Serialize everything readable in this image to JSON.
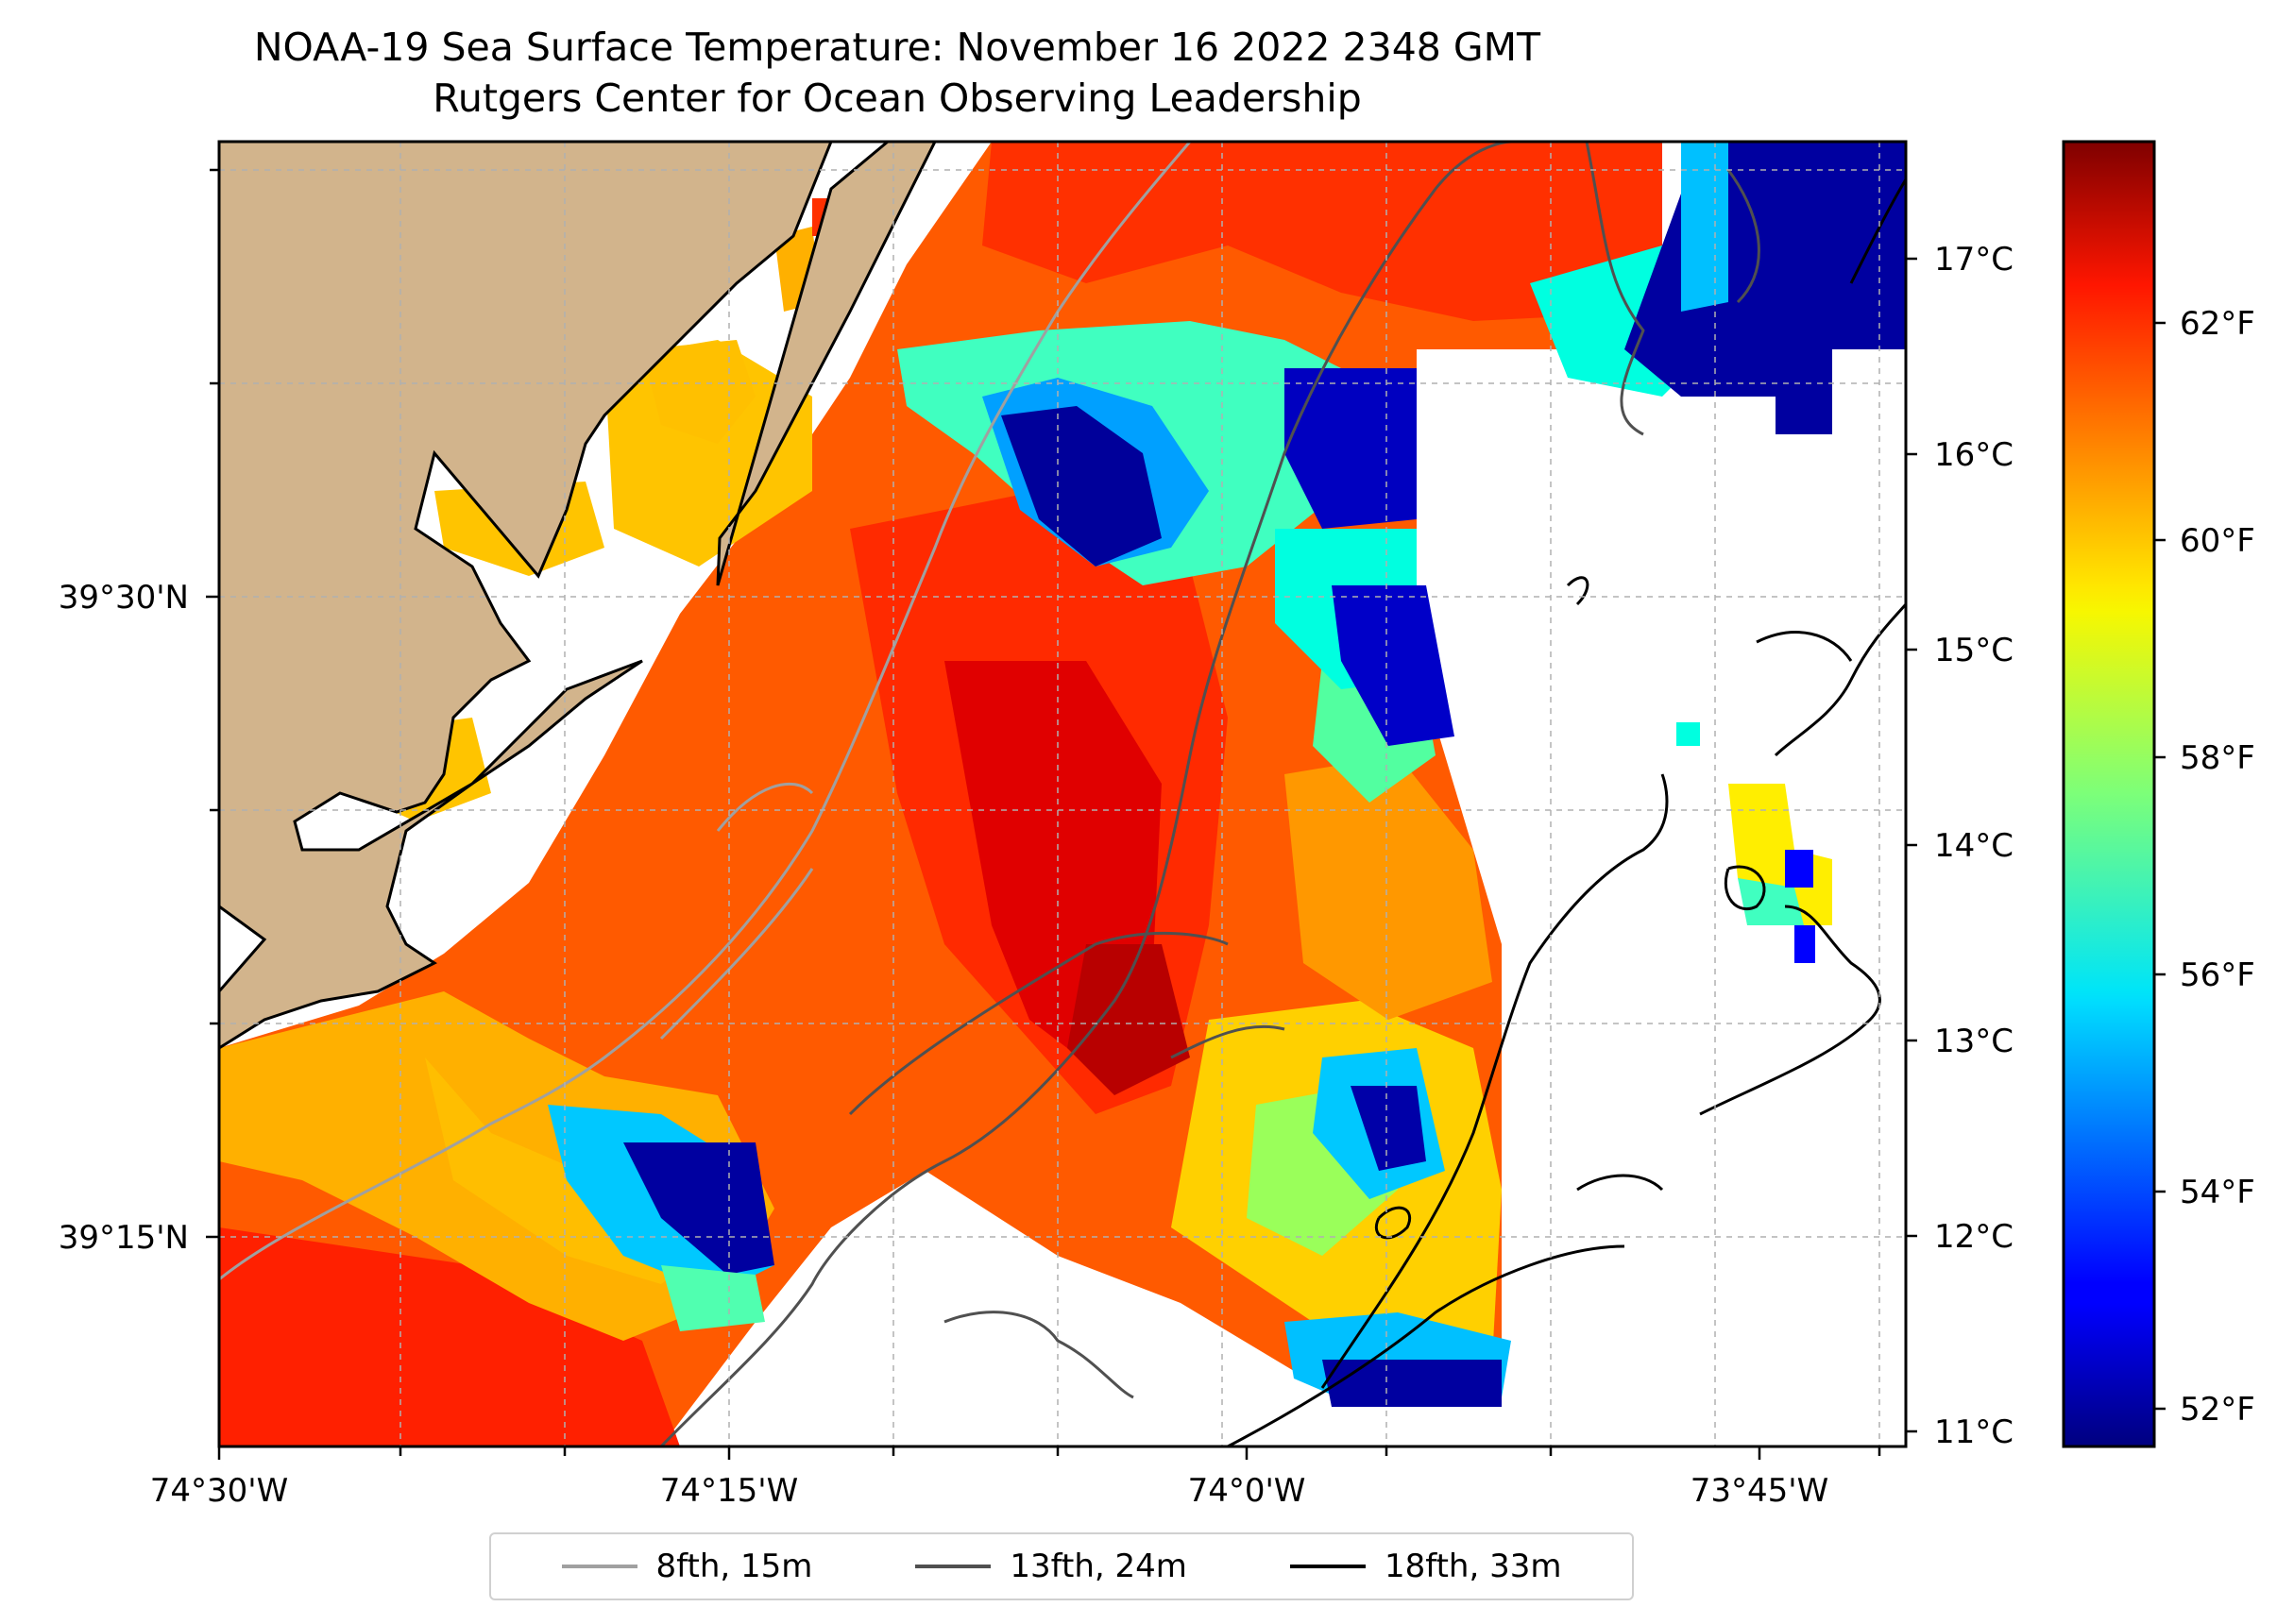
{
  "title": {
    "line1": "NOAA-19 Sea Surface Temperature: November 16 2022 2348 GMT",
    "line2": "Rutgers Center for Ocean Observing Leadership"
  },
  "map": {
    "lon_ticks": [
      "74°30'W",
      "74°15'W",
      "74°0'W",
      "73°45'W"
    ],
    "lat_ticks": [
      "39°30'N",
      "39°15'N"
    ],
    "land_color": "#d2b48c",
    "no_data_color": "#ffffff"
  },
  "colorbar": {
    "colormap": "jet",
    "celsius_ticks": [
      "17°C",
      "16°C",
      "15°C",
      "14°C",
      "13°C",
      "12°C",
      "11°C"
    ],
    "fahrenheit_ticks": [
      "62°F",
      "60°F",
      "58°F",
      "56°F",
      "54°F",
      "52°F"
    ],
    "celsius_range": [
      10.9,
      17.6
    ]
  },
  "legend": {
    "items": [
      {
        "label": "8fth, 15m",
        "color": "#a0a0a0"
      },
      {
        "label": "13fth, 24m",
        "color": "#505050"
      },
      {
        "label": "18fth, 33m",
        "color": "#000000"
      }
    ]
  }
}
